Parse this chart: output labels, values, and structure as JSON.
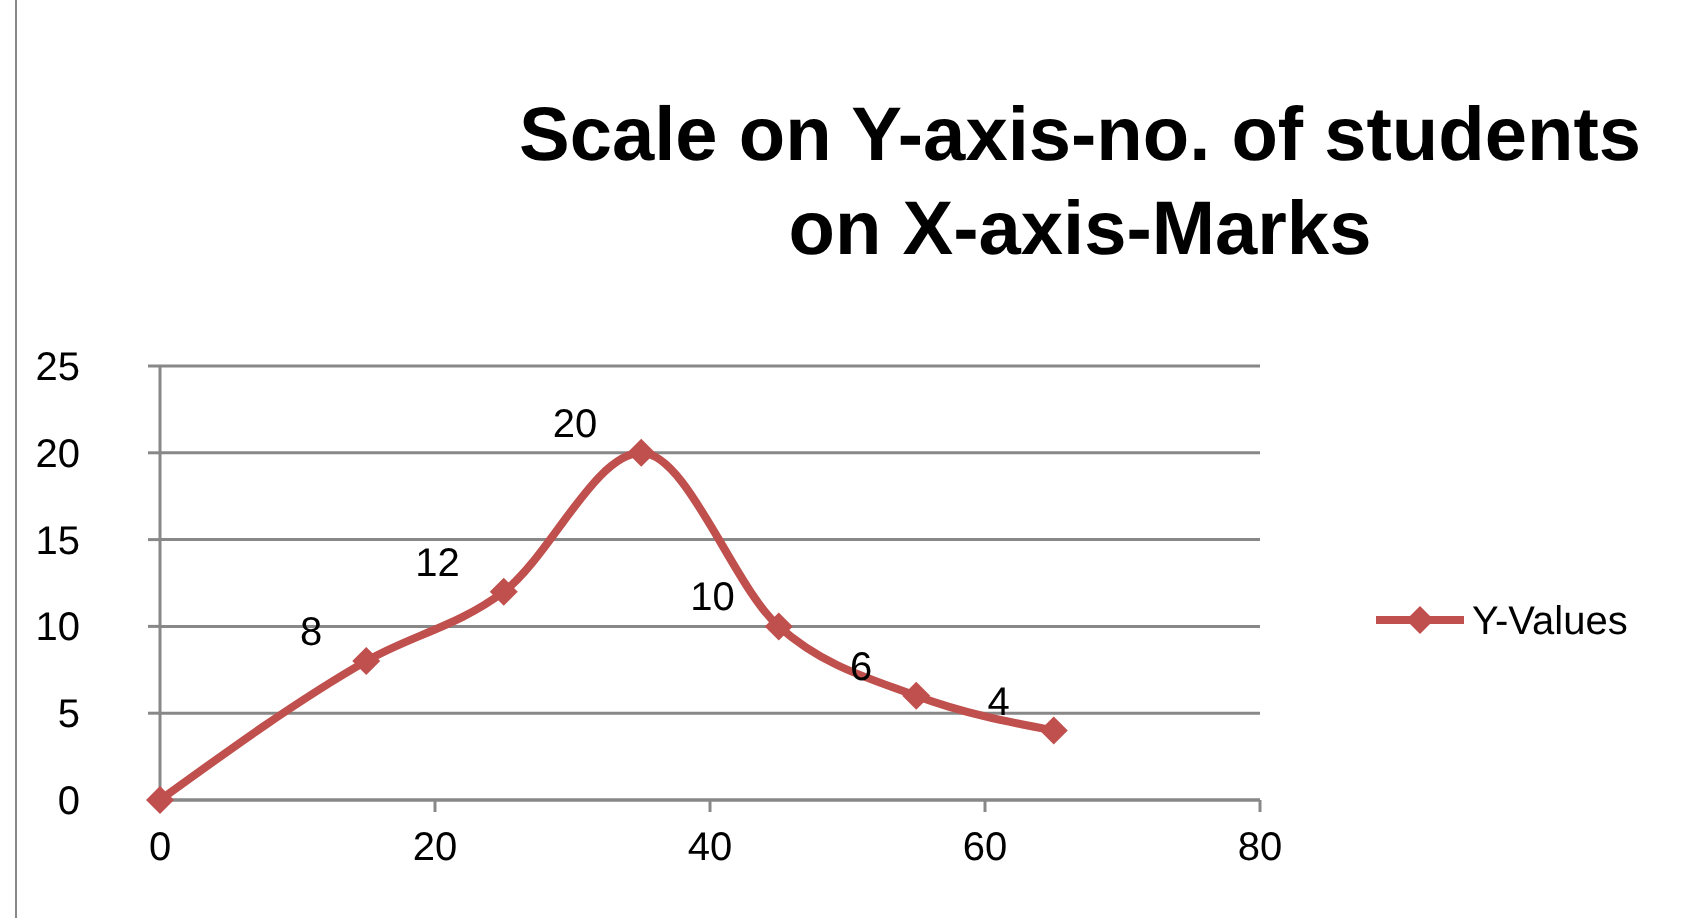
{
  "chart_data": {
    "type": "line",
    "title": "Scale on Y-axis-no. of students\non X-axis-Marks",
    "x": [
      0,
      15,
      25,
      35,
      45,
      55,
      65
    ],
    "series": [
      {
        "name": "Y-Values",
        "color": "#c0504d",
        "values": [
          0,
          8,
          12,
          20,
          10,
          6,
          4
        ],
        "value_labels": [
          null,
          "8",
          "12",
          "20",
          "10",
          "6",
          "4"
        ]
      }
    ],
    "xlim": [
      0,
      80
    ],
    "xticks": [
      0,
      20,
      40,
      60,
      80
    ],
    "ylim": [
      0,
      25
    ],
    "yticks": [
      0,
      5,
      10,
      15,
      20,
      25
    ],
    "grid": "y",
    "legend": "right",
    "marker": "diamond",
    "line_style": "solid"
  }
}
